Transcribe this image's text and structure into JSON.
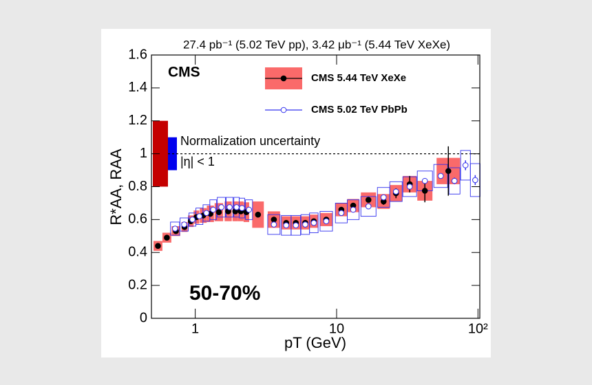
{
  "chart_data": {
    "type": "scatter",
    "title": "27.4 pb⁻¹ (5.02 TeV pp), 3.42 μb⁻¹ (5.44 TeV XeXe)",
    "x_label": "pT (GeV)",
    "y_label": "R*AA, RAA",
    "xlog": true,
    "xlim": [
      0.49,
      103
    ],
    "xticks": [
      1,
      10,
      {
        "value": 100,
        "label": "10²"
      }
    ],
    "ylim": [
      0,
      1.6
    ],
    "yticks": [
      0,
      0.2,
      0.4,
      0.6,
      0.8,
      1,
      1.2,
      1.4,
      1.6
    ],
    "grid": false,
    "reference_line": 1,
    "annotations": [
      "CMS",
      "Normalization uncertainty",
      "|η| < 1",
      "50-70%"
    ],
    "normalization": [
      {
        "color": "#c40000",
        "low": 0.8,
        "high": 1.2
      },
      {
        "color": "#0000ee",
        "low": 0.9,
        "high": 1.1
      }
    ],
    "series": [
      {
        "name": "CMS 5.44 TeV XeXe",
        "color": "#000000",
        "box_color": "#fa6a6a",
        "marker": "filled",
        "x": [
          0.545,
          0.63,
          0.73,
          0.84,
          0.93,
          1.02,
          1.14,
          1.28,
          1.47,
          1.71,
          1.92,
          2.1,
          2.3,
          2.78,
          3.6,
          4.4,
          5.15,
          6.0,
          6.9,
          8.45,
          10.8,
          13.1,
          16.8,
          21.5,
          26.3,
          32.9,
          42.1,
          61.7
        ],
        "values": [
          0.44,
          0.49,
          0.53,
          0.555,
          0.59,
          0.615,
          0.625,
          0.635,
          0.645,
          0.65,
          0.65,
          0.65,
          0.645,
          0.63,
          0.6,
          0.58,
          0.58,
          0.58,
          0.59,
          0.6,
          0.66,
          0.685,
          0.72,
          0.71,
          0.76,
          0.815,
          0.775,
          0.895
        ],
        "syst": [
          0.03,
          0.03,
          0.03,
          0.03,
          0.035,
          0.04,
          0.045,
          0.05,
          0.055,
          0.06,
          0.06,
          0.06,
          0.06,
          0.08,
          0.05,
          0.04,
          0.04,
          0.04,
          0.04,
          0.04,
          0.04,
          0.04,
          0.045,
          0.045,
          0.05,
          0.05,
          0.06,
          0.08
        ],
        "stat": [
          0.005,
          0.005,
          0.005,
          0.005,
          0.005,
          0.005,
          0.005,
          0.005,
          0.005,
          0.005,
          0.005,
          0.005,
          0.005,
          0.005,
          0.005,
          0.005,
          0.005,
          0.005,
          0.005,
          0.005,
          0.01,
          0.01,
          0.015,
          0.02,
          0.03,
          0.05,
          0.07,
          0.15
        ]
      },
      {
        "name": "CMS 5.02 TeV PbPb",
        "color": "#3030ee",
        "box_color": "#3030ee",
        "marker": "open",
        "x": [
          0.72,
          0.835,
          0.955,
          1.07,
          1.2,
          1.34,
          1.53,
          1.75,
          1.96,
          2.14,
          2.4,
          3.6,
          4.4,
          5.15,
          6.0,
          6.9,
          8.45,
          10.8,
          13.1,
          16.8,
          21.5,
          26.3,
          32.9,
          42.1,
          54.5,
          68.2,
          81.6,
          95.6
        ],
        "values": [
          0.545,
          0.57,
          0.6,
          0.62,
          0.64,
          0.66,
          0.675,
          0.675,
          0.675,
          0.67,
          0.66,
          0.57,
          0.565,
          0.565,
          0.57,
          0.58,
          0.59,
          0.64,
          0.66,
          0.68,
          0.735,
          0.77,
          0.8,
          0.835,
          0.865,
          0.835,
          0.93,
          0.84
        ],
        "syst": [
          0.04,
          0.04,
          0.04,
          0.05,
          0.05,
          0.06,
          0.06,
          0.06,
          0.06,
          0.06,
          0.06,
          0.06,
          0.06,
          0.06,
          0.06,
          0.06,
          0.06,
          0.06,
          0.06,
          0.06,
          0.06,
          0.06,
          0.06,
          0.06,
          0.07,
          0.08,
          0.09,
          0.1
        ],
        "stat": [
          0.003,
          0.003,
          0.003,
          0.003,
          0.003,
          0.003,
          0.003,
          0.003,
          0.003,
          0.003,
          0.003,
          0.003,
          0.003,
          0.003,
          0.003,
          0.003,
          0.003,
          0.005,
          0.005,
          0.005,
          0.005,
          0.01,
          0.01,
          0.01,
          0.015,
          0.02,
          0.03,
          0.03
        ]
      }
    ]
  }
}
